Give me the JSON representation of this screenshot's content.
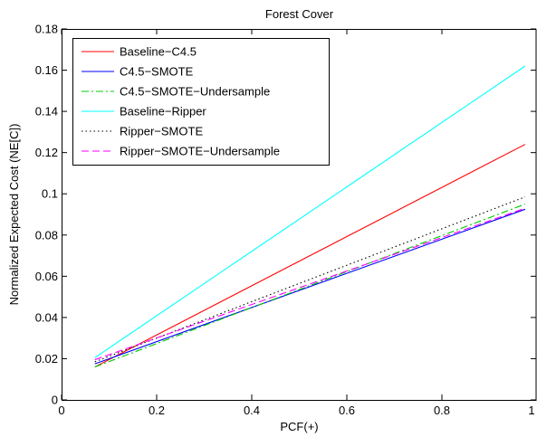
{
  "chart_data": {
    "type": "line",
    "title": "Forest Cover",
    "xlabel": "PCF(+)",
    "ylabel": "Normalized Expected Cost (NE[C])",
    "xlim": [
      0,
      1
    ],
    "ylim": [
      0,
      0.18
    ],
    "xticks": [
      0,
      0.2,
      0.4,
      0.6,
      0.8,
      1
    ],
    "xtick_labels": [
      "0",
      "0.2",
      "0.4",
      "0.6",
      "0.8",
      "1"
    ],
    "yticks": [
      0,
      0.02,
      0.04,
      0.06,
      0.08,
      0.1,
      0.12,
      0.14,
      0.16,
      0.18
    ],
    "ytick_labels": [
      "0",
      "0.02",
      "0.04",
      "0.06",
      "0.08",
      "0.1",
      "0.12",
      "0.14",
      "0.16",
      "0.18"
    ],
    "grid": false,
    "legend_position": "top-left",
    "series": [
      {
        "name": "Baseline−C4.5",
        "color": "#ff0000",
        "dash": "solid",
        "x": [
          0.07,
          0.975
        ],
        "y": [
          0.016,
          0.124
        ]
      },
      {
        "name": "C4.5−SMOTE",
        "color": "#0000ff",
        "dash": "solid",
        "x": [
          0.07,
          0.975
        ],
        "y": [
          0.0175,
          0.0925
        ]
      },
      {
        "name": "C4.5−SMOTE−Undersample",
        "color": "#00cc00",
        "dash": "dashdot",
        "x": [
          0.07,
          0.975
        ],
        "y": [
          0.016,
          0.095
        ]
      },
      {
        "name": "Baseline−Ripper",
        "color": "#00ffff",
        "dash": "solid",
        "x": [
          0.07,
          0.975
        ],
        "y": [
          0.0205,
          0.162
        ]
      },
      {
        "name": "Ripper−SMOTE",
        "color": "#000000",
        "dash": "dotted",
        "x": [
          0.07,
          0.975
        ],
        "y": [
          0.0185,
          0.0985
        ]
      },
      {
        "name": "Ripper−SMOTE−Undersample",
        "color": "#ff00ff",
        "dash": "dashed",
        "x": [
          0.07,
          0.975
        ],
        "y": [
          0.0195,
          0.093
        ]
      }
    ]
  }
}
